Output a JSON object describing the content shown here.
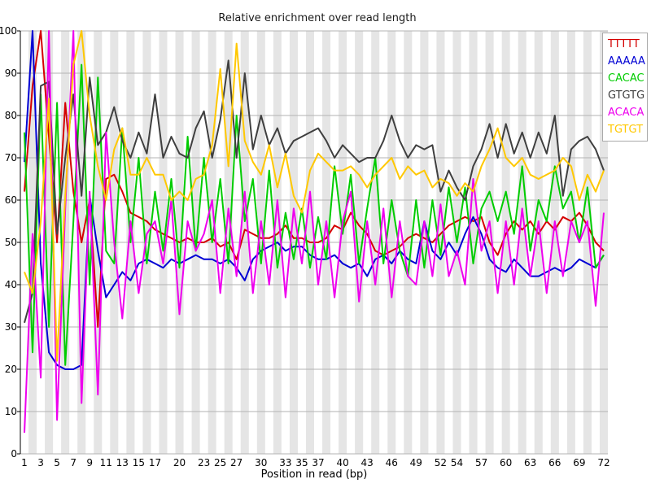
{
  "colors": {
    "background": "#ffffff",
    "band": "#e5e5e5",
    "gridline": "#b3b3b3",
    "axis": "#000000",
    "title_text": "#1a1a1a"
  },
  "chart_data": {
    "type": "line",
    "title": "Relative enrichment over read length",
    "xlabel": "Position in read (bp)",
    "ylabel": "",
    "ylim": [
      0,
      100
    ],
    "xlim": [
      1,
      72
    ],
    "grid": "horizontal gridlines every 10; alternating light-gray vertical band per read position",
    "legend_position": "top-right",
    "y_ticks": [
      0,
      10,
      20,
      30,
      40,
      50,
      60,
      70,
      80,
      90,
      100
    ],
    "x_tick_labels": [
      1,
      3,
      5,
      7,
      9,
      11,
      13,
      15,
      17,
      20,
      23,
      25,
      27,
      30,
      33,
      35,
      37,
      40,
      43,
      46,
      49,
      52,
      54,
      57,
      60,
      63,
      66,
      69,
      72
    ],
    "x": [
      1,
      2,
      3,
      4,
      5,
      6,
      7,
      8,
      9,
      10,
      11,
      12,
      13,
      14,
      15,
      16,
      17,
      18,
      19,
      20,
      21,
      22,
      23,
      24,
      25,
      26,
      27,
      28,
      29,
      30,
      31,
      32,
      33,
      34,
      35,
      36,
      37,
      38,
      39,
      40,
      41,
      42,
      43,
      44,
      45,
      46,
      47,
      48,
      49,
      50,
      51,
      52,
      53,
      54,
      55,
      56,
      57,
      58,
      59,
      60,
      61,
      62,
      63,
      64,
      65,
      66,
      67,
      68,
      69,
      70,
      71,
      72
    ],
    "series": [
      {
        "name": "TTTTT",
        "color": "#d40000",
        "values": [
          62,
          87,
          100,
          75,
          50,
          83,
          62,
          50,
          60,
          30,
          65,
          66,
          62,
          57,
          56,
          55,
          53,
          52,
          51,
          50,
          51,
          50,
          50,
          51,
          49,
          50,
          46,
          53,
          52,
          51,
          51,
          52,
          54,
          51,
          51,
          50,
          50,
          51,
          54,
          53,
          57,
          54,
          52,
          48,
          47,
          48,
          49,
          51,
          52,
          51,
          50,
          52,
          54,
          55,
          56,
          55,
          56,
          50,
          47,
          52,
          55,
          53,
          55,
          52,
          55,
          53,
          56,
          55,
          57,
          54,
          50,
          48
        ]
      },
      {
        "name": "AAAAA",
        "color": "#0000d4",
        "values": [
          69,
          100,
          45,
          24,
          21,
          20,
          20,
          21,
          61,
          48,
          37,
          40,
          43,
          41,
          45,
          46,
          45,
          44,
          46,
          45,
          46,
          47,
          46,
          46,
          45,
          46,
          44,
          41,
          46,
          48,
          49,
          50,
          48,
          49,
          49,
          47,
          46,
          46,
          47,
          45,
          44,
          45,
          42,
          46,
          47,
          45,
          48,
          46,
          45,
          55,
          48,
          46,
          50,
          47,
          52,
          56,
          52,
          46,
          44,
          43,
          46,
          44,
          42,
          42,
          43,
          44,
          43,
          44,
          46,
          45,
          44,
          47
        ]
      },
      {
        "name": "CACAC",
        "color": "#00cc00",
        "values": [
          76,
          24,
          85,
          30,
          83,
          21,
          55,
          92,
          40,
          89,
          48,
          45,
          77,
          50,
          70,
          45,
          62,
          48,
          65,
          44,
          75,
          48,
          70,
          50,
          65,
          45,
          80,
          55,
          65,
          45,
          67,
          44,
          57,
          46,
          58,
          44,
          56,
          46,
          68,
          52,
          66,
          45,
          58,
          70,
          45,
          60,
          48,
          42,
          60,
          44,
          60,
          47,
          63,
          50,
          63,
          45,
          58,
          62,
          55,
          62,
          52,
          68,
          48,
          60,
          55,
          68,
          58,
          62,
          50,
          63,
          44,
          47
        ]
      },
      {
        "name": "GTGTG",
        "color": "#3f3f3f",
        "values": [
          31,
          38,
          87,
          88,
          52,
          70,
          85,
          61,
          89,
          73,
          76,
          82,
          74,
          70,
          76,
          71,
          85,
          70,
          75,
          71,
          70,
          77,
          81,
          70,
          79,
          93,
          70,
          90,
          72,
          80,
          73,
          77,
          71,
          74,
          75,
          76,
          77,
          74,
          70,
          73,
          71,
          69,
          70,
          70,
          74,
          80,
          74,
          70,
          73,
          72,
          73,
          62,
          67,
          63,
          60,
          68,
          72,
          78,
          70,
          78,
          71,
          76,
          70,
          76,
          71,
          80,
          61,
          72,
          74,
          75,
          72,
          67
        ]
      },
      {
        "name": "ACACA",
        "color": "#ee00ee",
        "values": [
          5,
          52,
          18,
          100,
          8,
          58,
          100,
          12,
          62,
          14,
          76,
          50,
          32,
          55,
          38,
          52,
          55,
          45,
          60,
          33,
          55,
          48,
          52,
          60,
          38,
          58,
          42,
          62,
          38,
          55,
          40,
          60,
          37,
          58,
          45,
          62,
          40,
          55,
          37,
          55,
          62,
          36,
          55,
          40,
          58,
          37,
          55,
          42,
          40,
          55,
          42,
          59,
          42,
          48,
          40,
          65,
          48,
          55,
          38,
          55,
          40,
          58,
          42,
          55,
          38,
          55,
          42,
          55,
          50,
          55,
          35,
          57
        ]
      },
      {
        "name": "TGTGT",
        "color": "#ffc800",
        "values": [
          43,
          38,
          55,
          84,
          22,
          61,
          92,
          100,
          80,
          68,
          60,
          72,
          77,
          66,
          66,
          70,
          66,
          66,
          60,
          62,
          60,
          65,
          66,
          73,
          91,
          68,
          97,
          74,
          69,
          66,
          73,
          63,
          71,
          61,
          57,
          67,
          71,
          69,
          67,
          67,
          68,
          66,
          63,
          66,
          68,
          70,
          65,
          68,
          66,
          67,
          63,
          65,
          64,
          61,
          64,
          62,
          68,
          72,
          77,
          70,
          68,
          70,
          66,
          65,
          66,
          67,
          70,
          68,
          60,
          66,
          62,
          67
        ]
      }
    ]
  }
}
